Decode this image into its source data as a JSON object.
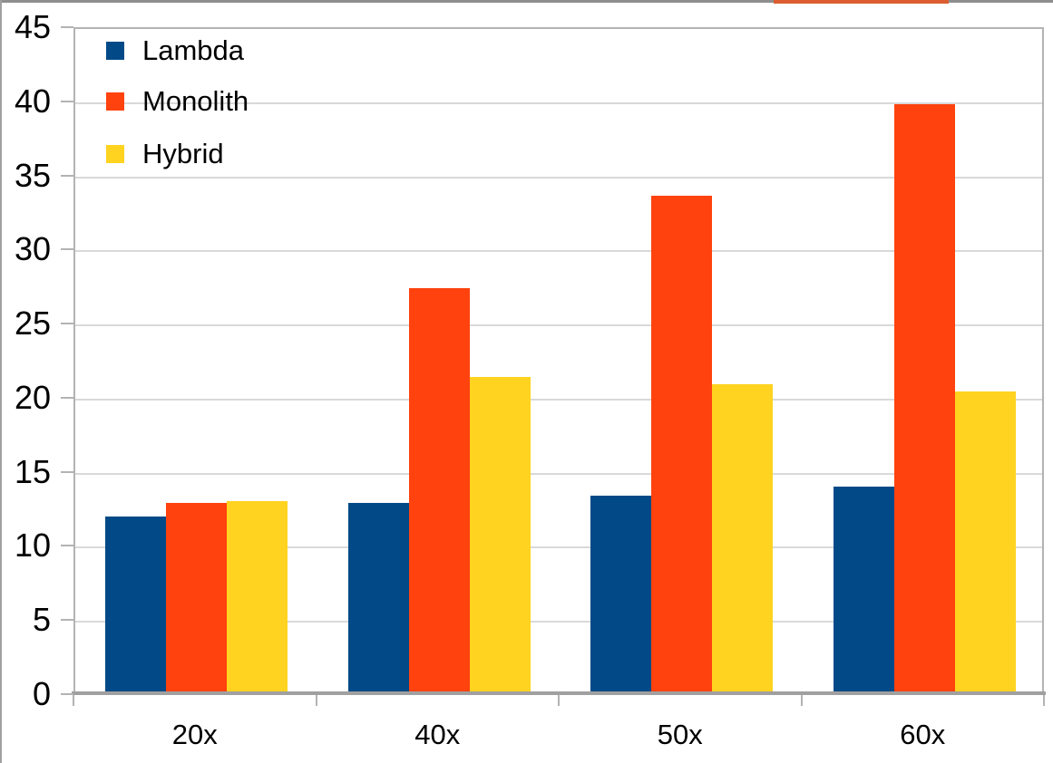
{
  "chart_data": {
    "type": "bar",
    "title": "",
    "xlabel": "",
    "ylabel": "",
    "categories": [
      "20x",
      "40x",
      "50x",
      "60x"
    ],
    "series": [
      {
        "name": "Lambda",
        "color": "#014a87",
        "values": [
          12.0,
          12.9,
          13.4,
          14.0
        ]
      },
      {
        "name": "Monolith",
        "color": "#ff420e",
        "values": [
          12.9,
          27.4,
          33.6,
          39.8
        ]
      },
      {
        "name": "Hybrid",
        "color": "#ffd320",
        "values": [
          13.0,
          21.4,
          20.9,
          20.4
        ]
      }
    ],
    "ylim": [
      0,
      45
    ],
    "ytick_step": 5,
    "ytick_labels": [
      "0",
      "5",
      "10",
      "15",
      "20",
      "25",
      "30",
      "35",
      "40",
      "45"
    ],
    "grid": "horizontal",
    "legend_position": "top-left-inside",
    "colors": {
      "gridline": "#d9d9d9",
      "wall_border": "#b3b3b3",
      "axis_line": "#a0a0a0",
      "text": "#000000"
    }
  },
  "decor": {
    "top_strip_color": "#8e8e8e",
    "top_accent_color": "#dc5e30",
    "left_strip_color": "#a0a0a0"
  }
}
